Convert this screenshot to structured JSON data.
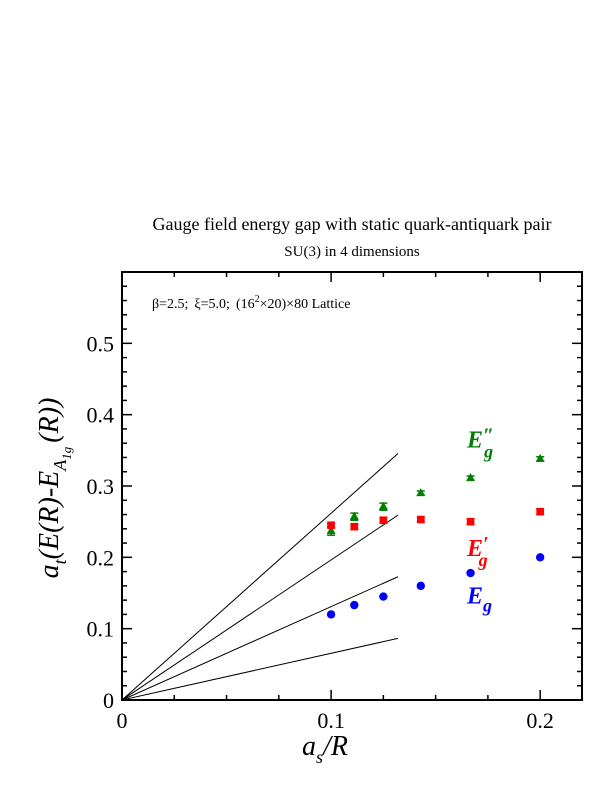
{
  "chart_data": {
    "type": "scatter",
    "title": "Gauge field energy gap with static quark-antiquark pair",
    "subtitle": "SU(3) in 4 dimensions",
    "annotation": {
      "beta": "β=2.5;",
      "xi": "ξ=5.0;",
      "lattice_pre": "(16",
      "lattice_sup": "2",
      "lattice_post": "×20)×80 Lattice"
    },
    "xlabel": {
      "a": "a",
      "s": "s",
      "rest": "/R"
    },
    "ylabel": {
      "a": "a",
      "t": "t",
      "open": "(E(R)-E",
      "A": "A",
      "sub1": "1",
      "sub2": "g",
      "close": "(R))"
    },
    "xlim": [
      0,
      0.22
    ],
    "ylim": [
      0,
      0.6
    ],
    "xticks": [
      {
        "v": 0,
        "label": "0"
      },
      {
        "v": 0.1,
        "label": "0.1"
      },
      {
        "v": 0.2,
        "label": "0.2"
      }
    ],
    "yticks": [
      {
        "v": 0,
        "label": "0"
      },
      {
        "v": 0.1,
        "label": "0.1"
      },
      {
        "v": 0.2,
        "label": "0.2"
      },
      {
        "v": 0.3,
        "label": "0.3"
      },
      {
        "v": 0.4,
        "label": "0.4"
      },
      {
        "v": 0.5,
        "label": "0.5"
      }
    ],
    "series": [
      {
        "name": "E″g",
        "base": "E",
        "prime": "″",
        "sub": "g",
        "color": "#007f00",
        "marker": "triangle",
        "label_at": [
          0.165,
          0.354
        ],
        "x": [
          0.1,
          0.1111,
          0.125,
          0.1429,
          0.1667,
          0.2
        ],
        "y": [
          0.237,
          0.257,
          0.271,
          0.29,
          0.311,
          0.338
        ],
        "err": [
          0.006,
          0.005,
          0.005,
          0.003,
          0.003,
          0.003
        ]
      },
      {
        "name": "E′g",
        "base": "E",
        "prime": "′",
        "sub": "g",
        "color": "#ff0000",
        "marker": "square",
        "label_at": [
          0.165,
          0.202
        ],
        "x": [
          0.1,
          0.1111,
          0.125,
          0.1429,
          0.1667,
          0.2
        ],
        "y": [
          0.245,
          0.243,
          0.252,
          0.253,
          0.25,
          0.264
        ],
        "err": [
          0.003,
          0.004,
          0.004,
          0.003,
          0.004,
          0.004
        ]
      },
      {
        "name": "Eg",
        "base": "E",
        "prime": "",
        "sub": "g",
        "color": "#0000ff",
        "marker": "circle",
        "label_at": [
          0.165,
          0.135
        ],
        "x": [
          0.1,
          0.1111,
          0.125,
          0.1429,
          0.1667,
          0.2
        ],
        "y": [
          0.12,
          0.133,
          0.145,
          0.16,
          0.178,
          0.2
        ],
        "err": [
          0.0,
          0.0,
          0.0,
          0.0,
          0.0,
          0.0
        ]
      }
    ],
    "reference_lines": {
      "x_end": 0.132,
      "slopes": [
        0.6545,
        1.309,
        1.9635,
        2.618
      ]
    }
  }
}
